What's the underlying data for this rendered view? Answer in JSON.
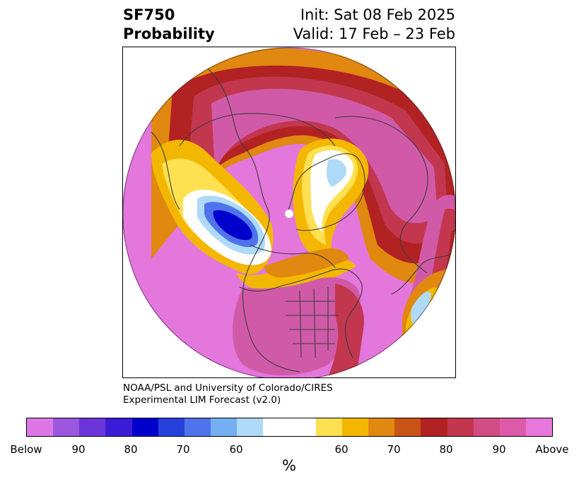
{
  "header": {
    "title_line1": "SF750",
    "title_line2": "Probability",
    "init_text": "Init: Sat 08 Feb 2025",
    "valid_text": "Valid: 17 Feb – 23 Feb"
  },
  "credits": {
    "line1": "NOAA/PSL and University of Colorado/CIRES",
    "line2": "Experimental LIM Forecast (v2.0)"
  },
  "colorbar": {
    "colors": [
      "#dd77e6",
      "#9b57e0",
      "#6c35da",
      "#3b1cd6",
      "#0000cd",
      "#2640db",
      "#4f73ea",
      "#74aff2",
      "#aedaf8",
      "#ffffff",
      "#ffffff",
      "#ffe050",
      "#f3b700",
      "#e08810",
      "#c85418",
      "#b22222",
      "#c2374e",
      "#d04c83",
      "#dc5aa8",
      "#e877db"
    ],
    "labels": [
      "Below",
      "90",
      "80",
      "70",
      "60",
      "60",
      "70",
      "80",
      "90",
      "Above"
    ],
    "unit": "%"
  },
  "map": {
    "projection": "polar stereographic, North Pole",
    "colors": {
      "above": "#e377db",
      "high": "#d15aa8",
      "crimson": "#c2374e",
      "red": "#b22222",
      "orange": "#e08810",
      "gold": "#f3b700",
      "yellow": "#ffe050",
      "light_blue": "#aedaf8",
      "blue": "#4f73ea",
      "deep_blue": "#0000cd",
      "coast": "#3c3c3c"
    }
  }
}
